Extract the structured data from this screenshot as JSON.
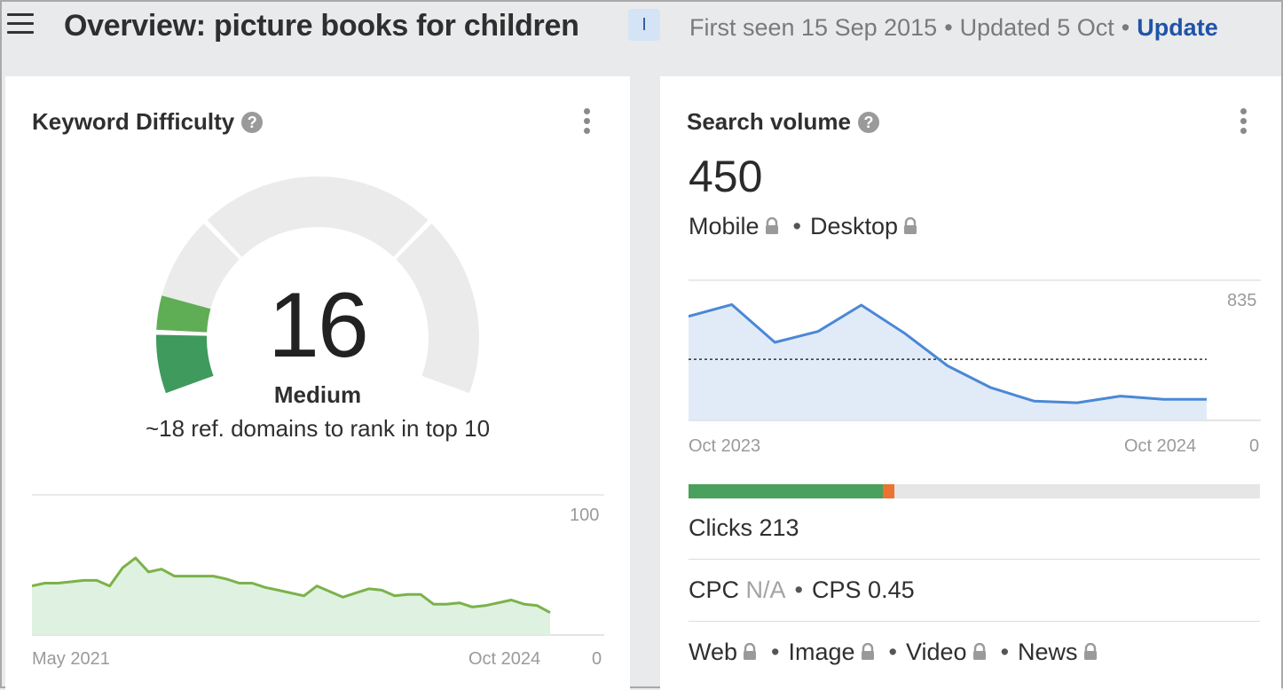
{
  "header": {
    "title": "Overview: picture books for children",
    "intent_badge": "I",
    "first_seen": "First seen 15 Sep 2015",
    "updated": "Updated 5 Oct",
    "update_link": "Update"
  },
  "keyword_difficulty": {
    "title": "Keyword Difficulty",
    "help_icon": "question-circle-icon",
    "value": "16",
    "label": "Medium",
    "subtitle": "~18 ref. domains to rank in top 10",
    "colors": {
      "fill_light": "#5fae55",
      "fill_dark": "#3f9a5e",
      "track": "#ebebeb",
      "line": "#7bb24a",
      "area": "#d9eedb"
    },
    "chart_data": {
      "type": "area",
      "x_start_label": "May 2021",
      "x_end_label": "Oct 2024",
      "y_max_label": "100",
      "y_min_label": "0",
      "ylim": [
        0,
        100
      ],
      "values": [
        35,
        37,
        37,
        38,
        39,
        39,
        35,
        48,
        55,
        45,
        47,
        42,
        42,
        42,
        42,
        40,
        37,
        37,
        34,
        32,
        30,
        28,
        35,
        31,
        27,
        30,
        33,
        32,
        28,
        29,
        29,
        22,
        22,
        23,
        20,
        21,
        23,
        25,
        22,
        21,
        16
      ]
    }
  },
  "search_volume": {
    "title": "Search volume",
    "help_icon": "question-circle-icon",
    "value": "450",
    "mobile_label": "Mobile",
    "desktop_label": "Desktop",
    "colors": {
      "line": "#4a88d6",
      "area": "#dce8f7"
    },
    "chart_data": {
      "type": "area",
      "x_start_label": "Oct 2023",
      "x_end_label": "Oct 2024",
      "y_max_label": "835",
      "y_min_label": "0",
      "ylim": [
        0,
        835
      ],
      "average": 364,
      "values": [
        620,
        690,
        465,
        530,
        687,
        520,
        325,
        195,
        115,
        105,
        145,
        125,
        125
      ]
    },
    "clicks_bar": {
      "organic_fraction": 0.34,
      "paid_fraction": 0.02,
      "organic_color": "#4aa05c",
      "paid_color": "#ec7332"
    },
    "clicks_label": "Clicks",
    "clicks_value": "213",
    "cpc_label": "CPC",
    "cpc_value": "N/A",
    "cps_label": "CPS",
    "cps_value": "0.45",
    "serp_types": [
      "Web",
      "Image",
      "Video",
      "News"
    ]
  }
}
